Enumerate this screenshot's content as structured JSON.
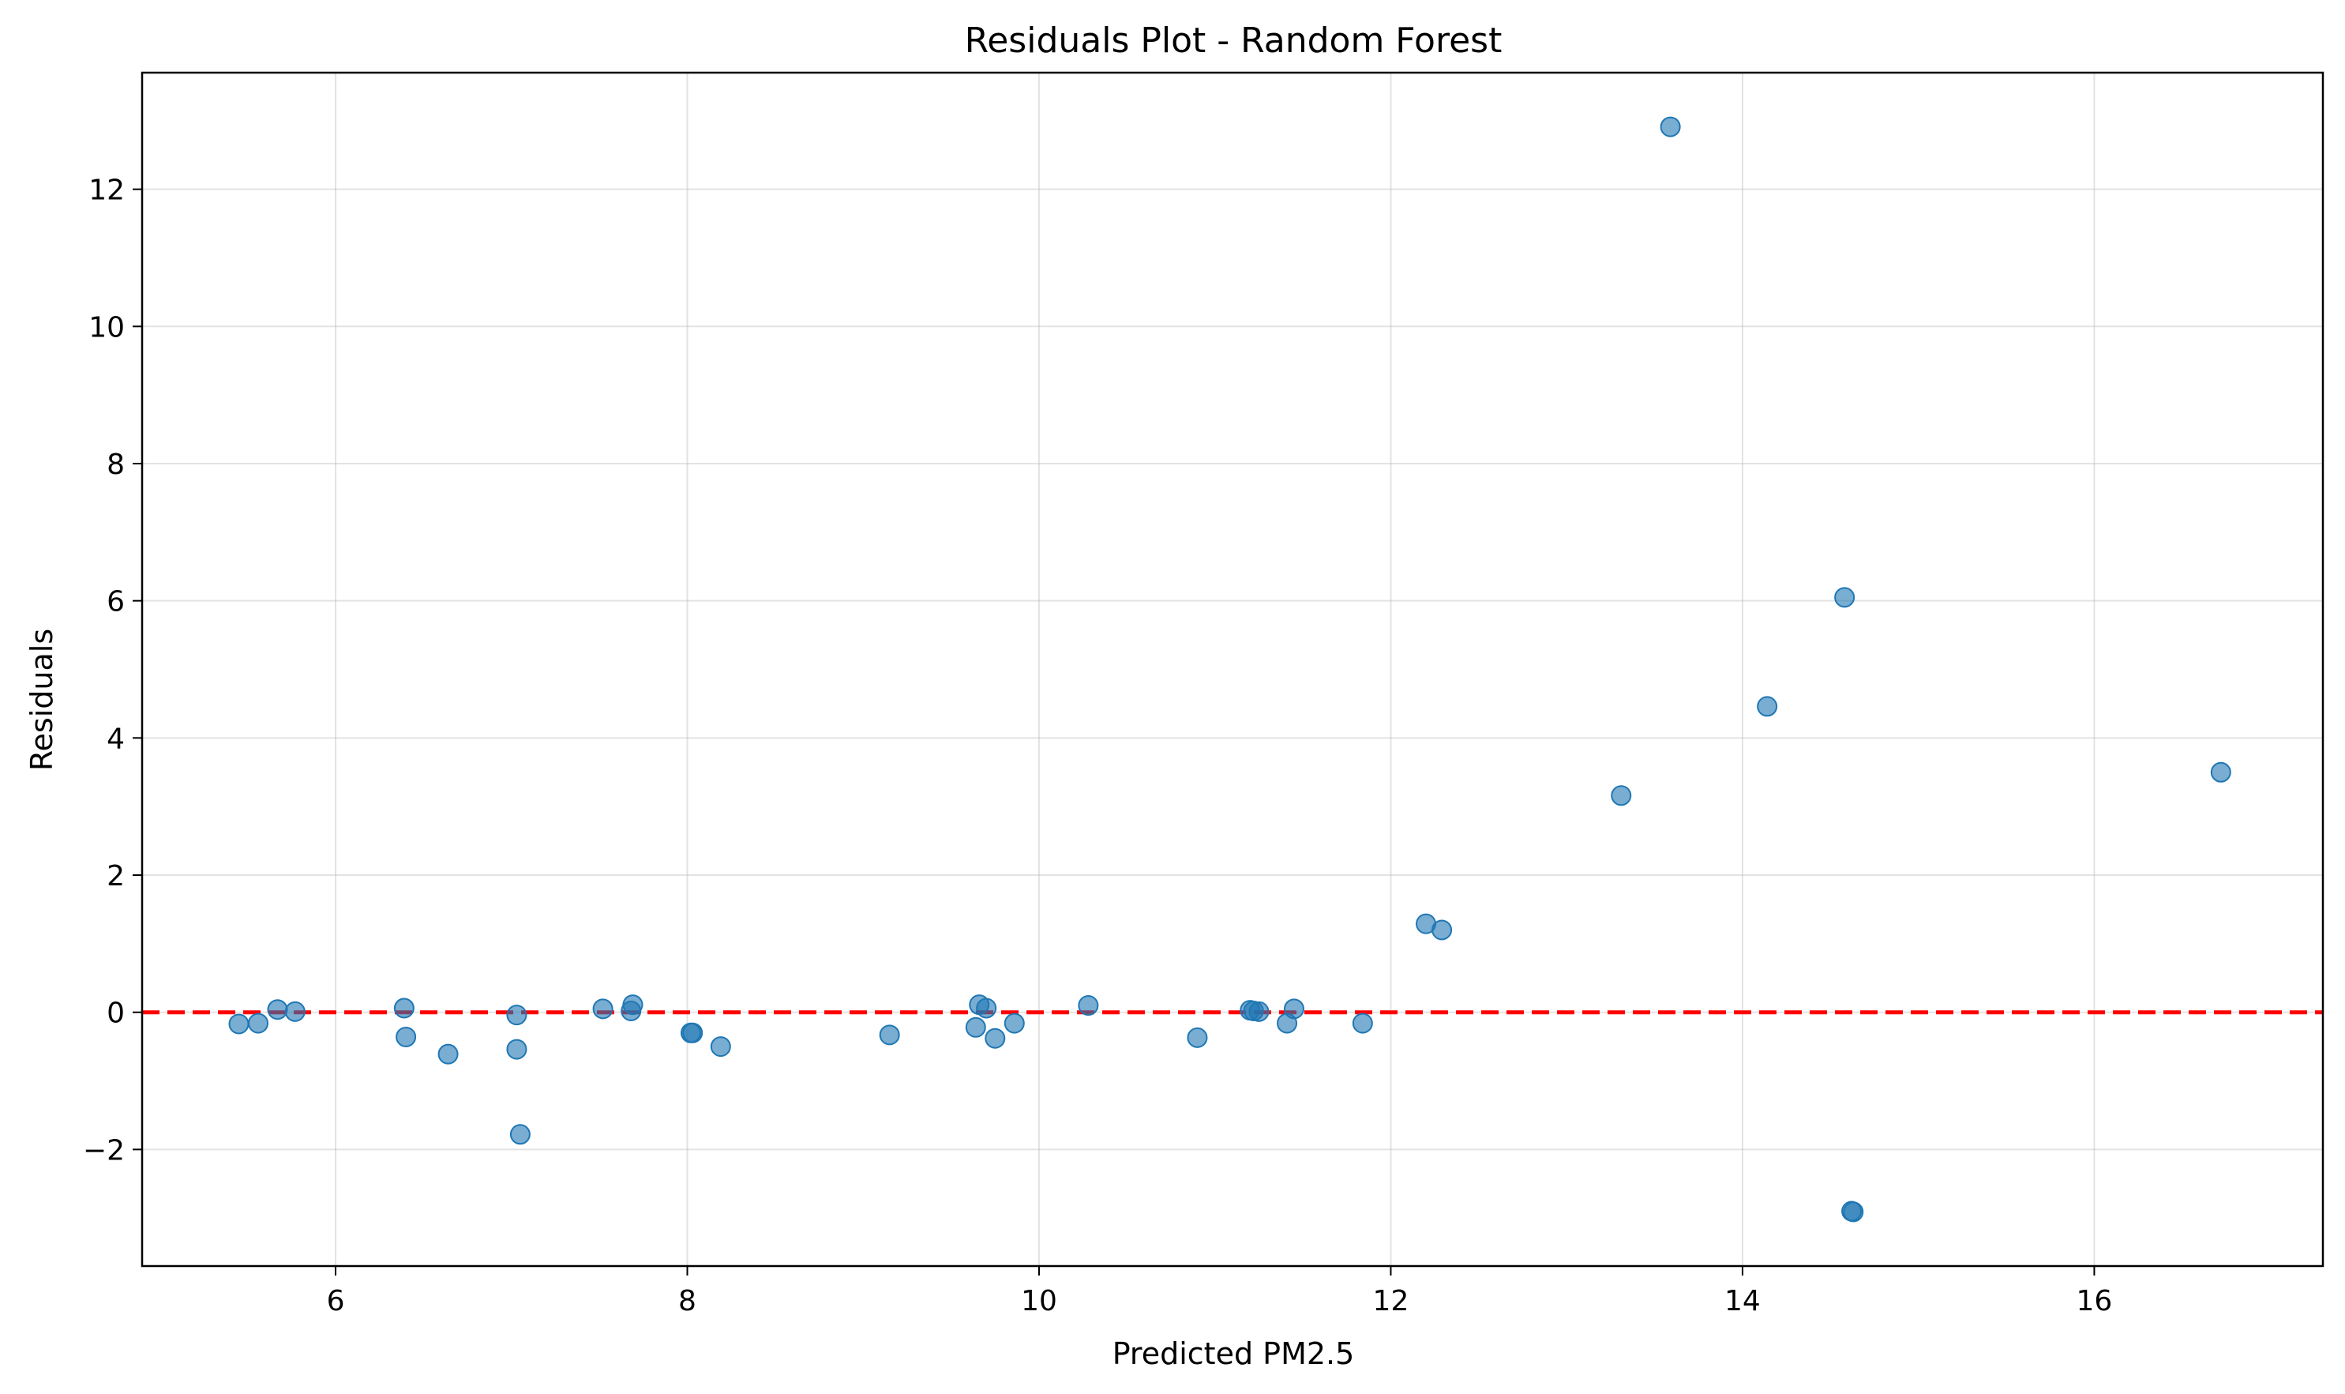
{
  "chart_data": {
    "type": "scatter",
    "title": "Residuals Plot - Random Forest",
    "xlabel": "Predicted PM2.5",
    "ylabel": "Residuals",
    "xlim": [
      4.9,
      17.3
    ],
    "ylim": [
      -3.7,
      13.7
    ],
    "xticks": [
      6,
      8,
      10,
      12,
      14,
      16
    ],
    "yticks": [
      -2,
      0,
      2,
      4,
      6,
      8,
      10,
      12
    ],
    "ytick_labels": [
      "−2",
      "0",
      "2",
      "4",
      "6",
      "8",
      "10",
      "12"
    ],
    "xtick_labels": [
      "6",
      "8",
      "10",
      "12",
      "14",
      "16"
    ],
    "grid": true,
    "reference_line": {
      "y": 0,
      "color": "#ff0000",
      "style": "dashed"
    },
    "point_color": "#1f77b4",
    "points": [
      [
        5.45,
        -0.17
      ],
      [
        5.56,
        -0.16
      ],
      [
        5.67,
        0.04
      ],
      [
        5.77,
        0.01
      ],
      [
        6.39,
        0.06
      ],
      [
        6.4,
        -0.36
      ],
      [
        6.64,
        -0.61
      ],
      [
        7.03,
        -0.04
      ],
      [
        7.03,
        -0.54
      ],
      [
        7.05,
        -1.78
      ],
      [
        7.52,
        0.05
      ],
      [
        7.68,
        0.02
      ],
      [
        7.69,
        0.11
      ],
      [
        8.02,
        -0.3
      ],
      [
        8.03,
        -0.3
      ],
      [
        8.19,
        -0.5
      ],
      [
        9.15,
        -0.33
      ],
      [
        9.64,
        -0.22
      ],
      [
        9.66,
        0.11
      ],
      [
        9.7,
        0.06
      ],
      [
        9.75,
        -0.38
      ],
      [
        9.86,
        -0.16
      ],
      [
        10.28,
        0.1
      ],
      [
        10.9,
        -0.37
      ],
      [
        11.2,
        0.03
      ],
      [
        11.22,
        0.02
      ],
      [
        11.25,
        0.01
      ],
      [
        11.41,
        -0.16
      ],
      [
        11.45,
        0.05
      ],
      [
        11.84,
        -0.16
      ],
      [
        12.2,
        1.29
      ],
      [
        12.29,
        1.2
      ],
      [
        13.31,
        3.16
      ],
      [
        13.59,
        12.91
      ],
      [
        14.14,
        4.46
      ],
      [
        14.58,
        6.05
      ],
      [
        14.62,
        -2.9
      ],
      [
        14.63,
        -2.91
      ],
      [
        16.72,
        3.5
      ]
    ]
  }
}
